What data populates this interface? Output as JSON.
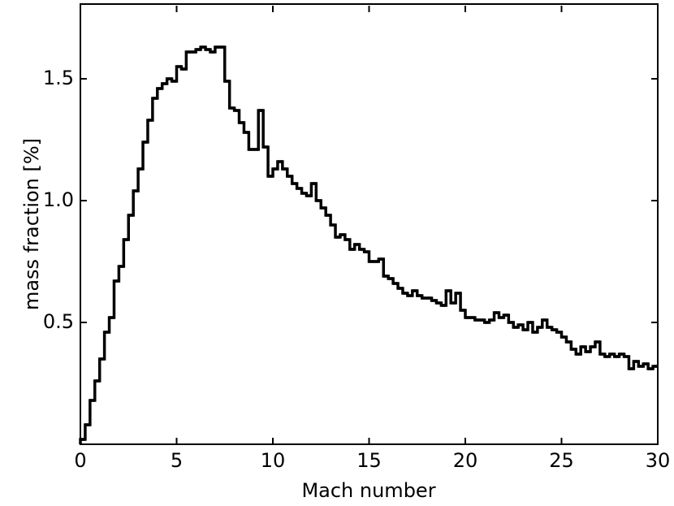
{
  "chart_data": {
    "type": "histogram",
    "xlabel": "Mach number",
    "ylabel": "mass fraction [%]",
    "color": "#000000",
    "bins": [
      0,
      0.25,
      0.5,
      0.75,
      1,
      1.25,
      1.5,
      1.75,
      2,
      2.25,
      2.5,
      2.75,
      3,
      3.25,
      3.5,
      3.75,
      4,
      4.25,
      4.5,
      4.75,
      5,
      5.25,
      5.5,
      5.75,
      6,
      6.25,
      6.5,
      6.75,
      7,
      7.25,
      7.5,
      7.75,
      8,
      8.25,
      8.5,
      8.75,
      9,
      9.25,
      9.5,
      9.75,
      10,
      10.25,
      10.5,
      10.75,
      11,
      11.25,
      11.5,
      11.75,
      12,
      12.25,
      12.5,
      12.75,
      13,
      13.25,
      13.5,
      13.75,
      14,
      14.25,
      14.5,
      14.75,
      15,
      15.25,
      15.5,
      15.75,
      16,
      16.25,
      16.5,
      16.75,
      17,
      17.25,
      17.5,
      17.75,
      18,
      18.25,
      18.5,
      18.75,
      19,
      19.25,
      19.5,
      19.75,
      20,
      20.25,
      20.5,
      20.75,
      21,
      21.25,
      21.5,
      21.75,
      22,
      22.25,
      22.5,
      22.75,
      23,
      23.25,
      23.5,
      23.75,
      24,
      24.25,
      24.5,
      24.75,
      25,
      25.25,
      25.5,
      25.75,
      26,
      26.25,
      26.5,
      26.75,
      27,
      27.25,
      27.5,
      27.75,
      28,
      28.25,
      28.5,
      28.75,
      29,
      29.25,
      29.5,
      29.75,
      30
    ],
    "values": [
      0.02,
      0.08,
      0.18,
      0.26,
      0.35,
      0.46,
      0.52,
      0.67,
      0.73,
      0.84,
      0.94,
      1.04,
      1.13,
      1.24,
      1.33,
      1.42,
      1.46,
      1.48,
      1.5,
      1.49,
      1.55,
      1.54,
      1.61,
      1.61,
      1.62,
      1.63,
      1.62,
      1.61,
      1.63,
      1.63,
      1.49,
      1.38,
      1.37,
      1.32,
      1.28,
      1.21,
      1.21,
      1.37,
      1.22,
      1.1,
      1.13,
      1.16,
      1.13,
      1.1,
      1.07,
      1.05,
      1.03,
      1.02,
      1.07,
      1.0,
      0.97,
      0.94,
      0.9,
      0.85,
      0.86,
      0.84,
      0.8,
      0.82,
      0.8,
      0.79,
      0.75,
      0.75,
      0.76,
      0.69,
      0.68,
      0.66,
      0.64,
      0.62,
      0.61,
      0.63,
      0.61,
      0.6,
      0.6,
      0.59,
      0.58,
      0.57,
      0.63,
      0.58,
      0.62,
      0.55,
      0.52,
      0.52,
      0.51,
      0.51,
      0.5,
      0.51,
      0.54,
      0.52,
      0.53,
      0.5,
      0.48,
      0.49,
      0.47,
      0.5,
      0.46,
      0.48,
      0.51,
      0.48,
      0.47,
      0.46,
      0.44,
      0.42,
      0.39,
      0.37,
      0.4,
      0.38,
      0.4,
      0.42,
      0.37,
      0.36,
      0.37,
      0.36,
      0.37,
      0.36,
      0.31,
      0.34,
      0.32,
      0.33,
      0.31,
      0.32
    ],
    "xlim": [
      0,
      30
    ],
    "ylim": [
      0,
      1.8
    ],
    "xticks": [
      0,
      5,
      10,
      15,
      20,
      25,
      30
    ],
    "yticks": [
      0.5,
      {
        "value": 1.0,
        "label": "1.0"
      },
      1.5
    ]
  }
}
